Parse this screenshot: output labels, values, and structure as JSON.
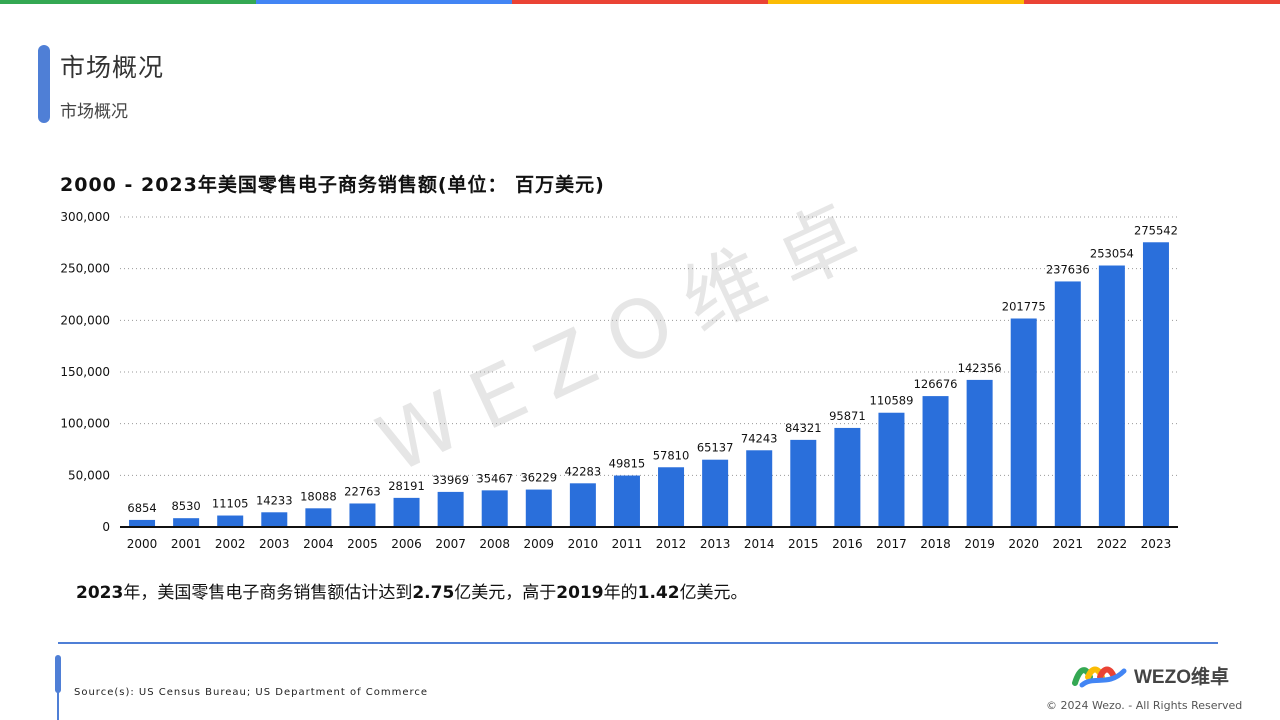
{
  "header": {
    "title": "市场概况",
    "subtitle": "市场概况",
    "stripe_colors": [
      "#34a853",
      "#4285f4",
      "#ea4335",
      "#fbbc05",
      "#ea4335"
    ]
  },
  "chart_title": "2000 - 2023年美国零售电子商务销售额(单位： 百万美元)",
  "watermark": "WEZO维卓",
  "caption": {
    "p1": "2023",
    "t1": "年，美国零售电子商务销售额估计达到",
    "p2": "2.75",
    "t2": "亿美元，高于",
    "p3": "2019",
    "t3": "年的",
    "p4": "1.42",
    "t4": "亿美元。"
  },
  "footer": {
    "source": "Source(s): US Census Bureau; US Department of Commerce",
    "logo_text": "WEZO维卓",
    "copyright": "© 2024 Wezo. - All Rights Reserved"
  },
  "chart_data": {
    "type": "bar",
    "title": "2000 - 2023年美国零售电子商务销售额(单位： 百万美元)",
    "categories": [
      "2000",
      "2001",
      "2002",
      "2003",
      "2004",
      "2005",
      "2006",
      "2007",
      "2008",
      "2009",
      "2010",
      "2011",
      "2012",
      "2013",
      "2014",
      "2015",
      "2016",
      "2017",
      "2018",
      "2019",
      "2020",
      "2021",
      "2022",
      "2023"
    ],
    "values": [
      6854,
      8530,
      11105,
      14233,
      18088,
      22763,
      28191,
      33969,
      35467,
      36229,
      42283,
      49815,
      57810,
      65137,
      74243,
      84321,
      95871,
      110589,
      126676,
      142356,
      201775,
      237636,
      253054,
      275542
    ],
    "yticks": [
      "0",
      "50,000",
      "100,000",
      "150,000",
      "200,000",
      "250,000",
      "300,000"
    ],
    "ylim": [
      0,
      300000
    ],
    "bar_color": "#2a6fdb",
    "grid": "dotted horizontal",
    "legend": "none"
  }
}
